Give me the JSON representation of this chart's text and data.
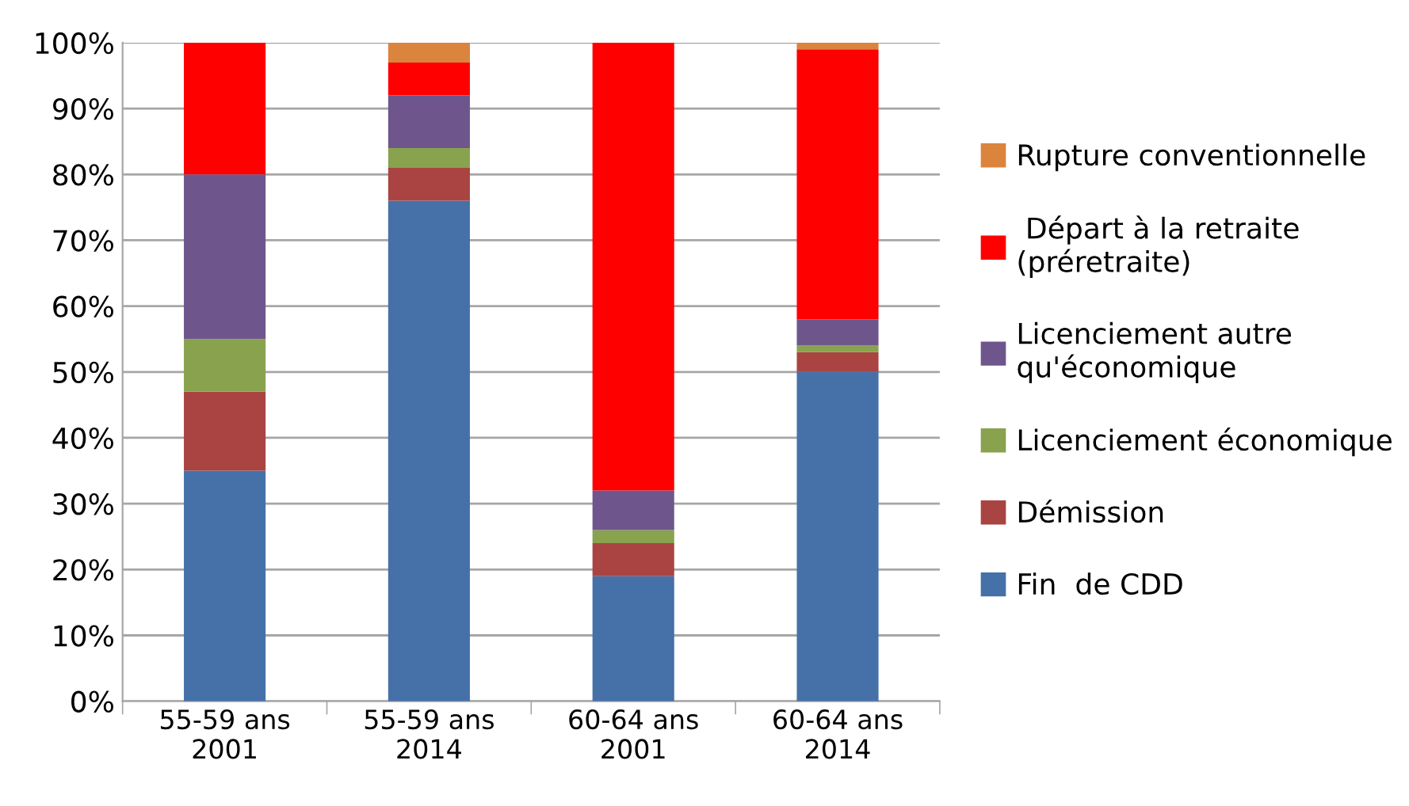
{
  "chart_data": {
    "type": "bar",
    "stacked": true,
    "categories": [
      "55-59 ans\n2001",
      "55-59 ans\n2014",
      "60-64 ans\n2001",
      "60-64 ans\n2014"
    ],
    "series": [
      {
        "name": "Fin  de CDD",
        "color": "#4571a8",
        "values": [
          35,
          76,
          19,
          50
        ]
      },
      {
        "name": "Démission",
        "color": "#a94442",
        "values": [
          12,
          5,
          5,
          3
        ]
      },
      {
        "name": "Licenciement économique",
        "color": "#88a24e",
        "values": [
          8,
          3,
          2,
          1
        ]
      },
      {
        "name": "Licenciement autre\nqu'économique",
        "color": "#6e568d",
        "values": [
          25,
          8,
          6,
          4
        ]
      },
      {
        "name": " Départ à la retraite\n(préretraite)",
        "color": "#ff0000",
        "values": [
          20,
          5,
          68,
          41
        ]
      },
      {
        "name": "Rupture conventionnelle",
        "color": "#db843d",
        "values": [
          0,
          3,
          0,
          1
        ]
      }
    ],
    "ylim": [
      0,
      100
    ],
    "yticks": [
      {
        "value": 0,
        "label": "0%"
      },
      {
        "value": 10,
        "label": "10%"
      },
      {
        "value": 20,
        "label": "20%"
      },
      {
        "value": 30,
        "label": "30%"
      },
      {
        "value": 40,
        "label": "40%"
      },
      {
        "value": 50,
        "label": "50%"
      },
      {
        "value": 60,
        "label": "60%"
      },
      {
        "value": 70,
        "label": "70%"
      },
      {
        "value": 80,
        "label": "80%"
      },
      {
        "value": 90,
        "label": "90%"
      },
      {
        "value": 100,
        "label": "100%"
      }
    ],
    "grid": "y",
    "legend": "right"
  }
}
